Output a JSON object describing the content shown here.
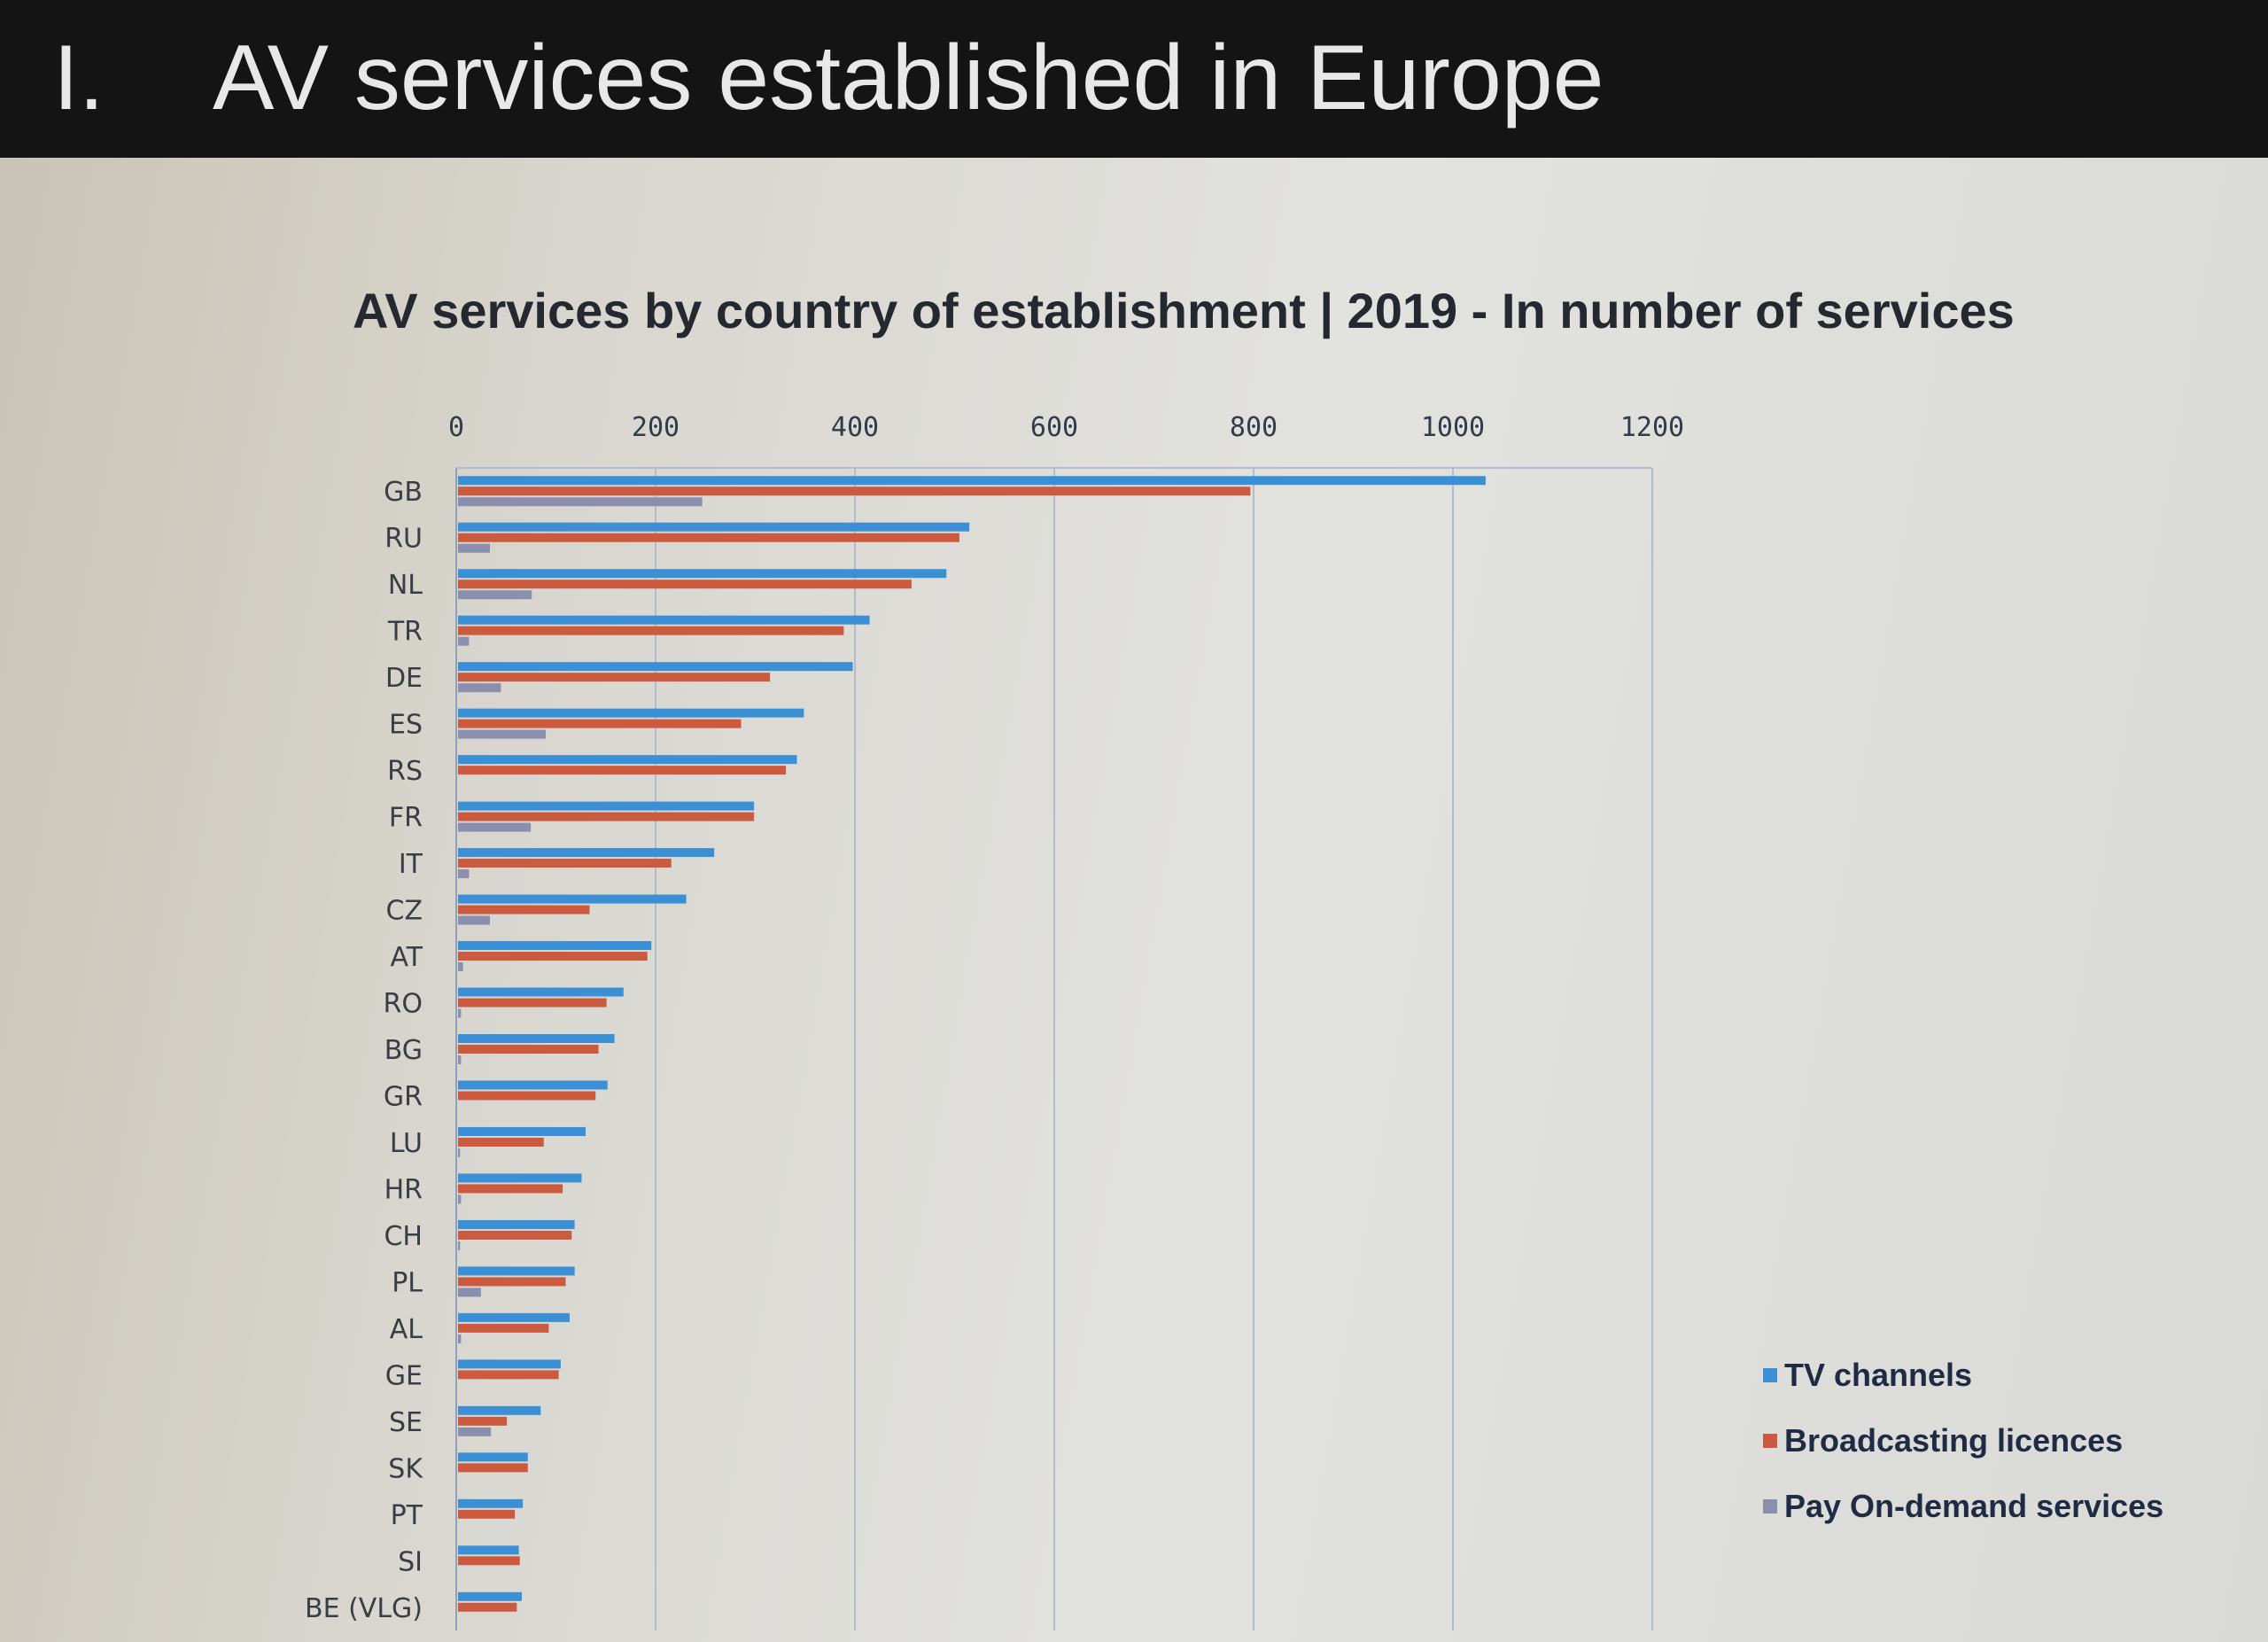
{
  "slide": {
    "number": "I.",
    "title": "AV services established in Europe"
  },
  "chart_data": {
    "type": "bar",
    "orientation": "horizontal",
    "title": "AV services by country of establishment | 2019 - In number of services",
    "xlim": [
      0,
      1200
    ],
    "xticks": [
      "0",
      "200",
      "400",
      "600",
      "800",
      "1000",
      "1200"
    ],
    "x_axis_position": "top",
    "grid": true,
    "legend_position": "bottom-right",
    "categories": [
      "GB",
      "RU",
      "NL",
      "TR",
      "DE",
      "ES",
      "RS",
      "FR",
      "IT",
      "CZ",
      "AT",
      "RO",
      "BG",
      "GR",
      "LU",
      "HR",
      "CH",
      "PL",
      "AL",
      "GE",
      "SE",
      "SK",
      "PT",
      "SI",
      "BE (VLG)"
    ],
    "series": [
      {
        "name": "TV channels",
        "color": "#3b8fd4",
        "values": [
          1031,
          513,
          490,
          413,
          396,
          347,
          340,
          297,
          257,
          229,
          194,
          166,
          157,
          150,
          128,
          124,
          117,
          117,
          112,
          103,
          83,
          70,
          65,
          61,
          64
        ]
      },
      {
        "name": "Broadcasting licences",
        "color": "#cc5a3e",
        "values": [
          795,
          503,
          455,
          387,
          313,
          284,
          329,
          297,
          214,
          132,
          190,
          149,
          141,
          138,
          86,
          105,
          114,
          108,
          91,
          101,
          49,
          70,
          57,
          62,
          59
        ]
      },
      {
        "name": "Pay On-demand services",
        "color": "#8b8fae",
        "values": [
          245,
          32,
          74,
          11,
          43,
          88,
          0,
          73,
          11,
          32,
          5,
          3,
          3,
          0,
          2,
          3,
          2,
          23,
          3,
          0,
          33,
          0,
          0,
          0,
          0
        ]
      }
    ]
  }
}
